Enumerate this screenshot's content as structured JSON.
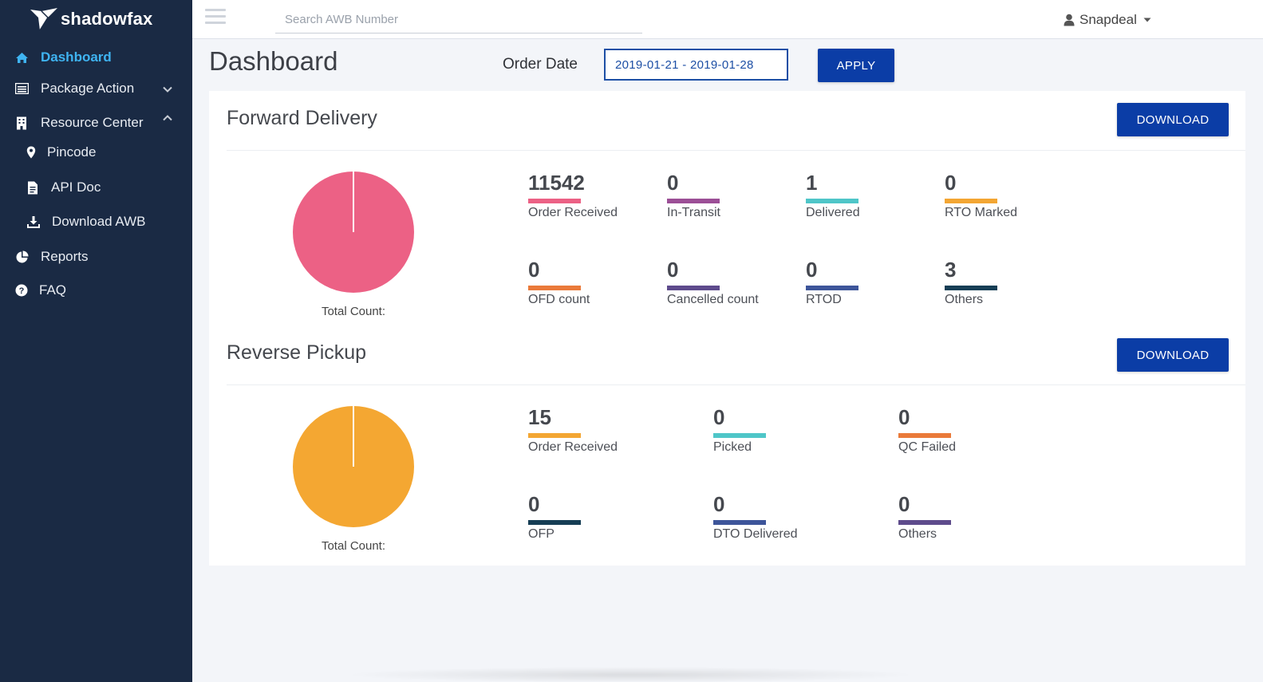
{
  "app": {
    "brand": "shadowfax"
  },
  "sidebar": {
    "items": [
      {
        "label": "Dashboard",
        "icon": "home-icon"
      },
      {
        "label": "Package Action",
        "icon": "list-icon"
      },
      {
        "label": "Resource Center",
        "icon": "building-icon"
      },
      {
        "label": "Pincode",
        "icon": "map-pin-icon"
      },
      {
        "label": "API Doc",
        "icon": "document-icon"
      },
      {
        "label": "Download AWB",
        "icon": "download-icon"
      },
      {
        "label": "Reports",
        "icon": "pie-chart-icon"
      },
      {
        "label": "FAQ",
        "icon": "question-circle-icon"
      }
    ]
  },
  "topbar": {
    "search_placeholder": "Search AWB Number",
    "user": "Snapdeal"
  },
  "header": {
    "title": "Dashboard",
    "order_date_label": "Order Date",
    "date_range": "2019-01-21 - 2019-01-28",
    "apply_label": "APPLY"
  },
  "forward": {
    "title": "Forward Delivery",
    "download_label": "DOWNLOAD",
    "total_label": "Total Count:",
    "pie_color": "#ec6185",
    "stats": [
      {
        "value": "11542",
        "label": "Order Received",
        "color": "#ec6185"
      },
      {
        "value": "0",
        "label": "In-Transit",
        "color": "#9c4f96"
      },
      {
        "value": "1",
        "label": "Delivered",
        "color": "#4fc6c8"
      },
      {
        "value": "0",
        "label": "RTO Marked",
        "color": "#f3a633"
      },
      {
        "value": "0",
        "label": "OFD count",
        "color": "#ea7a3a"
      },
      {
        "value": "0",
        "label": "Cancelled count",
        "color": "#5e4b8c"
      },
      {
        "value": "0",
        "label": "RTOD",
        "color": "#3d559a"
      },
      {
        "value": "3",
        "label": "Others",
        "color": "#163e55"
      }
    ]
  },
  "reverse": {
    "title": "Reverse Pickup",
    "download_label": "DOWNLOAD",
    "total_label": "Total Count:",
    "pie_color": "#f4a732",
    "stats": [
      {
        "value": "15",
        "label": "Order Received",
        "color": "#f3a633"
      },
      {
        "value": "0",
        "label": "Picked",
        "color": "#4fc6c8"
      },
      {
        "value": "0",
        "label": "QC Failed",
        "color": "#ea7a3a"
      },
      {
        "value": "0",
        "label": "OFP",
        "color": "#163e55"
      },
      {
        "value": "0",
        "label": "DTO Delivered",
        "color": "#3d559a"
      },
      {
        "value": "0",
        "label": "Others",
        "color": "#5e4b8c"
      }
    ]
  }
}
